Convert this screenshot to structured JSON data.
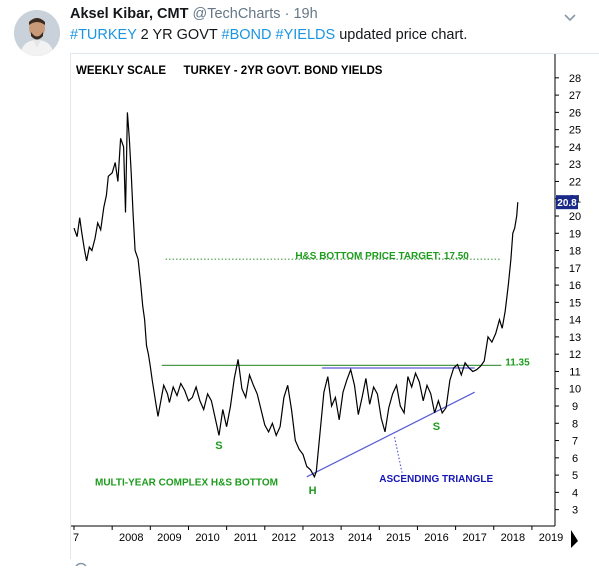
{
  "tweet": {
    "author_name": "Aksel Kibar, CMT",
    "author_handle": "@TechCharts",
    "separator": "·",
    "time": "19h",
    "text_parts": [
      {
        "text": "#TURKEY",
        "hashtag": true
      },
      {
        "text": " 2 YR GOVT ",
        "hashtag": false
      },
      {
        "text": "#BOND",
        "hashtag": true
      },
      {
        "text": " ",
        "hashtag": false
      },
      {
        "text": "#YIELDS",
        "hashtag": true
      },
      {
        "text": " updated price chart.",
        "hashtag": false
      }
    ]
  },
  "icons": {
    "avatar": "profile-photo",
    "caret": "chevron-down-icon",
    "reply": "reply-icon",
    "more": "ellipsis-icon"
  },
  "colors": {
    "hashtag": "#1b95e0",
    "price_line": "#000000",
    "green_label": "#1e9c1e",
    "blue_label": "#1515b8",
    "neckline": "#4a9a4a",
    "triangle": "#5a5ad8",
    "target_line": "#4a9a4a",
    "last_value_bg": "#1a2a8a"
  },
  "chart_data": {
    "type": "line",
    "title": "TURKEY - 2YR GOVT. BOND YIELDS",
    "subtitle": "WEEKLY SCALE",
    "x_ticks": [
      "7",
      "2008",
      "2009",
      "2010",
      "2011",
      "2012",
      "2013",
      "2014",
      "2015",
      "2016",
      "2017",
      "2018",
      "2019"
    ],
    "y_ticks": [
      3,
      4,
      5,
      6,
      7,
      8,
      9,
      10,
      11,
      12,
      13,
      14,
      15,
      16,
      17,
      18,
      19,
      20,
      21,
      22,
      23,
      24,
      25,
      26,
      27,
      28
    ],
    "xlim": [
      2007.0,
      2019.5
    ],
    "ylim": [
      2.4,
      28.8
    ],
    "last_value_label": "20.8",
    "series": [
      {
        "x": [
          2007.0,
          2007.08,
          2007.15,
          2007.2,
          2007.27,
          2007.33,
          2007.4,
          2007.47,
          2007.55,
          2007.62,
          2007.7,
          2007.78,
          2007.85,
          2007.9,
          2008.0,
          2008.08,
          2008.15,
          2008.22,
          2008.3,
          2008.35,
          2008.4,
          2008.45,
          2008.5,
          2008.55,
          2008.6,
          2008.68,
          2008.75,
          2008.8,
          2008.85,
          2008.9,
          2008.95,
          2009.0,
          2009.05,
          2009.1,
          2009.15,
          2009.2,
          2009.3,
          2009.35,
          2009.45,
          2009.5,
          2009.6,
          2009.7,
          2009.8,
          2009.9,
          2010.0,
          2010.1,
          2010.2,
          2010.3,
          2010.4,
          2010.5,
          2010.6,
          2010.7,
          2010.8,
          2010.9,
          2011.0,
          2011.1,
          2011.2,
          2011.3,
          2011.4,
          2011.5,
          2011.6,
          2011.7,
          2011.8,
          2011.9,
          2012.0,
          2012.1,
          2012.2,
          2012.3,
          2012.4,
          2012.5,
          2012.6,
          2012.7,
          2012.8,
          2012.9,
          2013.0,
          2013.1,
          2013.2,
          2013.3,
          2013.35,
          2013.45,
          2013.55,
          2013.65,
          2013.75,
          2013.85,
          2013.95,
          2014.05,
          2014.15,
          2014.25,
          2014.35,
          2014.45,
          2014.55,
          2014.65,
          2014.75,
          2014.85,
          2014.95,
          2015.05,
          2015.15,
          2015.25,
          2015.35,
          2015.45,
          2015.55,
          2015.65,
          2015.75,
          2015.85,
          2015.95,
          2016.05,
          2016.15,
          2016.25,
          2016.35,
          2016.45,
          2016.55,
          2016.65,
          2016.75,
          2016.85,
          2016.95,
          2017.05,
          2017.15,
          2017.25,
          2017.35,
          2017.45,
          2017.55,
          2017.65,
          2017.75,
          2017.85,
          2017.95,
          2018.05,
          2018.15,
          2018.22,
          2018.3,
          2018.38,
          2018.45,
          2018.5,
          2018.55,
          2018.6,
          2018.63
        ],
        "y": [
          19.3,
          18.8,
          19.9,
          19.1,
          18.1,
          17.4,
          18.2,
          18.0,
          18.7,
          19.6,
          19.2,
          20.5,
          21.2,
          22.3,
          22.5,
          23.1,
          22.0,
          24.5,
          24.0,
          20.2,
          26.0,
          24.5,
          22.5,
          20.1,
          18.0,
          17.5,
          16.0,
          14.8,
          14.0,
          12.5,
          12.0,
          11.3,
          10.5,
          9.8,
          9.1,
          8.4,
          9.6,
          10.2,
          9.7,
          9.2,
          10.1,
          9.6,
          10.3,
          9.9,
          9.3,
          9.5,
          10.1,
          9.3,
          8.8,
          9.7,
          9.3,
          8.3,
          7.3,
          8.8,
          7.8,
          9.0,
          10.6,
          11.7,
          10.0,
          9.5,
          10.8,
          10.2,
          9.7,
          8.8,
          7.9,
          7.5,
          8.0,
          7.3,
          7.8,
          9.5,
          10.2,
          8.8,
          7.0,
          6.5,
          6.2,
          5.5,
          5.3,
          4.9,
          5.2,
          7.5,
          9.8,
          10.7,
          9.0,
          9.5,
          8.2,
          9.8,
          10.5,
          11.1,
          10.2,
          8.5,
          9.5,
          10.6,
          9.1,
          10.1,
          9.7,
          8.3,
          7.5,
          8.9,
          9.7,
          10.2,
          9.0,
          8.6,
          10.7,
          10.1,
          10.9,
          10.4,
          9.3,
          10.2,
          9.7,
          8.6,
          9.3,
          8.6,
          8.9,
          10.5,
          11.2,
          11.4,
          10.8,
          11.5,
          11.2,
          11.0,
          11.1,
          11.3,
          11.6,
          13.0,
          12.7,
          13.2,
          14.0,
          13.5,
          14.5,
          16.0,
          17.5,
          19.0,
          19.3,
          20.0,
          20.8
        ]
      }
    ],
    "annotations": [
      {
        "text": "H&S BOTTOM PRICE TARGET: 17.50",
        "x": 2012.8,
        "y": 17.5,
        "kind": "horizontal-line-label"
      },
      {
        "text": "11.35",
        "x": 2018.3,
        "y": 11.35,
        "kind": "neckline-value"
      },
      {
        "text": "S",
        "x": 2010.7,
        "y": 6.5,
        "kind": "pattern-label"
      },
      {
        "text": "H",
        "x": 2013.15,
        "y": 3.9,
        "kind": "pattern-label"
      },
      {
        "text": "S",
        "x": 2016.4,
        "y": 7.6,
        "kind": "pattern-label"
      },
      {
        "text": "MULTI-YEAR COMPLEX H&S BOTTOM",
        "x": 2007.55,
        "y": 4.4,
        "kind": "pattern-name"
      },
      {
        "text": "ASCENDING TRIANGLE",
        "x": 2015.0,
        "y": 4.6,
        "kind": "pattern-name"
      }
    ],
    "lines": [
      {
        "name": "target",
        "x": [
          2009.4,
          2018.2
        ],
        "y": [
          17.5,
          17.5
        ],
        "style": "dotted"
      },
      {
        "name": "neckline",
        "x": [
          2009.3,
          2018.2
        ],
        "y": [
          11.35,
          11.35
        ],
        "style": "solid"
      },
      {
        "name": "triangle-top",
        "x": [
          2013.5,
          2017.5
        ],
        "y": [
          11.2,
          11.2
        ],
        "style": "solid"
      },
      {
        "name": "triangle-bottom",
        "x": [
          2013.1,
          2017.5
        ],
        "y": [
          4.9,
          9.8
        ],
        "style": "solid"
      },
      {
        "name": "triangle-apex-pointer",
        "x": [
          2015.4,
          2015.6
        ],
        "y": [
          7.2,
          5.1
        ],
        "style": "dotted"
      }
    ],
    "grid": false,
    "legend": "none"
  }
}
